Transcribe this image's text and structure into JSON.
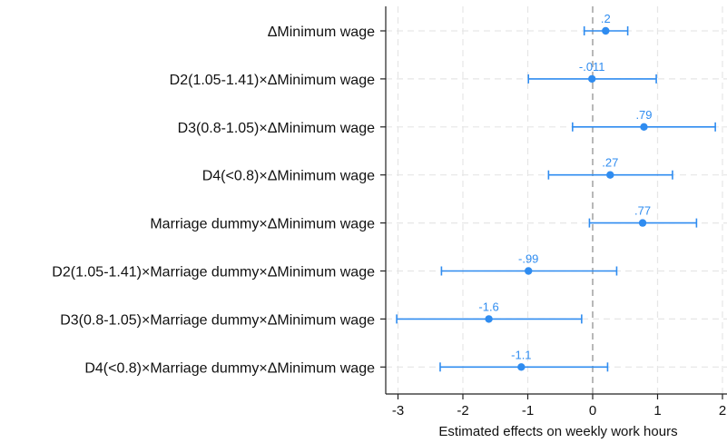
{
  "chart_data": {
    "type": "scatter",
    "subtype": "coefficient-plot-with-confidence-intervals",
    "xlabel": "Estimated effects on weekly work hours",
    "ylabel": "",
    "title": "",
    "xlim": [
      -3.15,
      2.05
    ],
    "xticks": [
      -3,
      -2,
      -1,
      0,
      1,
      2
    ],
    "xtick_labels": [
      "-3",
      "-2",
      "-1",
      "0",
      "1",
      "2"
    ],
    "reference_line_x": 0,
    "grid": true,
    "legend": "none",
    "series": [
      {
        "points": [
          {
            "label": "ΔMinimum wage",
            "estimate": 0.2,
            "ci_low": -0.13,
            "ci_high": 0.54,
            "value_label": ".2"
          },
          {
            "label": "D2(1.05-1.41)×ΔMinimum wage",
            "estimate": -0.011,
            "ci_low": -0.99,
            "ci_high": 0.98,
            "value_label": "-.011"
          },
          {
            "label": "D3(0.8-1.05)×ΔMinimum wage",
            "estimate": 0.79,
            "ci_low": -0.31,
            "ci_high": 1.89,
            "value_label": ".79"
          },
          {
            "label": "D4(<0.8)×ΔMinimum wage",
            "estimate": 0.27,
            "ci_low": -0.68,
            "ci_high": 1.23,
            "value_label": ".27"
          },
          {
            "label": "Marriage dummy×ΔMinimum wage",
            "estimate": 0.77,
            "ci_low": -0.05,
            "ci_high": 1.6,
            "value_label": ".77"
          },
          {
            "label": "D2(1.05-1.41)×Marriage dummy×ΔMinimum wage",
            "estimate": -0.99,
            "ci_low": -2.33,
            "ci_high": 0.37,
            "value_label": "-.99"
          },
          {
            "label": "D3(0.8-1.05)×Marriage dummy×ΔMinimum wage",
            "estimate": -1.6,
            "ci_low": -3.02,
            "ci_high": -0.17,
            "value_label": "-1.6"
          },
          {
            "label": "D4(<0.8)×Marriage dummy×ΔMinimum wage",
            "estimate": -1.1,
            "ci_low": -2.35,
            "ci_high": 0.23,
            "value_label": "-1.1"
          }
        ]
      }
    ],
    "colors": {
      "marker": "#2f8cf0",
      "data_label": "#2f8cf0",
      "reference_line": "#a8a8a8",
      "grid": "#e6e6e6",
      "axis": "#222222"
    }
  }
}
